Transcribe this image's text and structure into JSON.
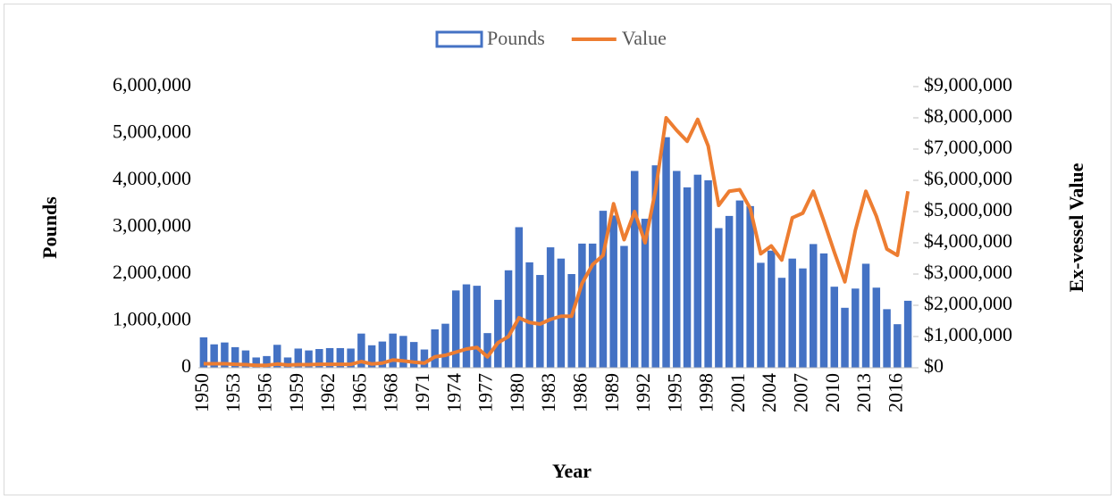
{
  "chart_data": {
    "type": "bar_line",
    "xlabel": "Year",
    "ylabel": "Pounds",
    "y2label": "Ex-vessel Value",
    "categories": [
      "1950",
      null,
      null,
      "1953",
      null,
      null,
      "1956",
      null,
      null,
      "1959",
      null,
      null,
      "1962",
      null,
      null,
      "1965",
      null,
      null,
      "1968",
      null,
      null,
      "1971",
      null,
      null,
      "1974",
      null,
      null,
      "1977",
      null,
      null,
      "1980",
      null,
      null,
      "1983",
      null,
      null,
      "1986",
      null,
      null,
      "1989",
      null,
      null,
      "1992",
      null,
      null,
      "1995",
      null,
      null,
      "1998",
      null,
      null,
      "2001",
      null,
      null,
      "2004",
      null,
      null,
      "2007",
      null,
      null,
      "2010",
      null,
      null,
      "2013",
      null,
      null,
      "2016",
      null
    ],
    "series": [
      {
        "name": "Pounds",
        "type": "bar",
        "color": "#4472c4",
        "values": [
          650000,
          500000,
          540000,
          440000,
          370000,
          220000,
          250000,
          490000,
          220000,
          410000,
          370000,
          400000,
          420000,
          420000,
          410000,
          730000,
          480000,
          560000,
          730000,
          680000,
          550000,
          390000,
          820000,
          940000,
          1650000,
          1780000,
          1750000,
          740000,
          1450000,
          2080000,
          3000000,
          2250000,
          1980000,
          2570000,
          2330000,
          2000000,
          2650000,
          2650000,
          3350000,
          3250000,
          2600000,
          4200000,
          3180000,
          4320000,
          4920000,
          4200000,
          3850000,
          4120000,
          4000000,
          2980000,
          3240000,
          3570000,
          3450000,
          2240000,
          2500000,
          1920000,
          2330000,
          2120000,
          2640000,
          2440000,
          1730000,
          1280000,
          1690000,
          2220000,
          1710000,
          1250000,
          930000,
          1430000
        ]
      },
      {
        "name": "Value",
        "type": "line",
        "axis": "y2",
        "color": "#ed7d31",
        "values": [
          130000,
          130000,
          130000,
          110000,
          100000,
          80000,
          80000,
          120000,
          90000,
          100000,
          100000,
          110000,
          110000,
          110000,
          110000,
          200000,
          120000,
          150000,
          250000,
          220000,
          180000,
          150000,
          350000,
          400000,
          500000,
          600000,
          650000,
          350000,
          800000,
          1000000,
          1600000,
          1450000,
          1400000,
          1550000,
          1650000,
          1650000,
          2700000,
          3300000,
          3600000,
          5250000,
          4100000,
          5000000,
          4000000,
          5700000,
          8000000,
          7600000,
          7250000,
          7950000,
          7100000,
          5200000,
          5650000,
          5700000,
          5100000,
          3650000,
          3900000,
          3450000,
          4800000,
          4950000,
          5650000,
          4700000,
          3700000,
          2750000,
          4400000,
          5650000,
          4850000,
          3800000,
          3600000,
          5650000
        ]
      }
    ],
    "ylim": [
      0,
      6000000
    ],
    "yticks": [
      0,
      {
        "value": 1000000,
        "label": "1,000,000"
      },
      {
        "value": 2000000,
        "label": "2,000,000"
      },
      {
        "value": 3000000,
        "label": "3,000,000"
      },
      {
        "value": 4000000,
        "label": "4,000,000"
      },
      {
        "value": 5000000,
        "label": "5,000,000"
      },
      {
        "value": 6000000,
        "label": "6,000,000"
      }
    ],
    "y2lim": [
      0,
      9000000
    ],
    "y2ticks": [
      {
        "value": 0,
        "label": "$0"
      },
      {
        "value": 1000000,
        "label": "$1,000,000"
      },
      {
        "value": 2000000,
        "label": "$2,000,000"
      },
      {
        "value": 3000000,
        "label": "$3,000,000"
      },
      {
        "value": 4000000,
        "label": "$4,000,000"
      },
      {
        "value": 5000000,
        "label": "$5,000,000"
      },
      {
        "value": 6000000,
        "label": "$6,000,000"
      },
      {
        "value": 7000000,
        "label": "$7,000,000"
      },
      {
        "value": 8000000,
        "label": "$8,000,000"
      },
      {
        "value": 9000000,
        "label": "$9,000,000"
      }
    ],
    "legend": "top"
  }
}
